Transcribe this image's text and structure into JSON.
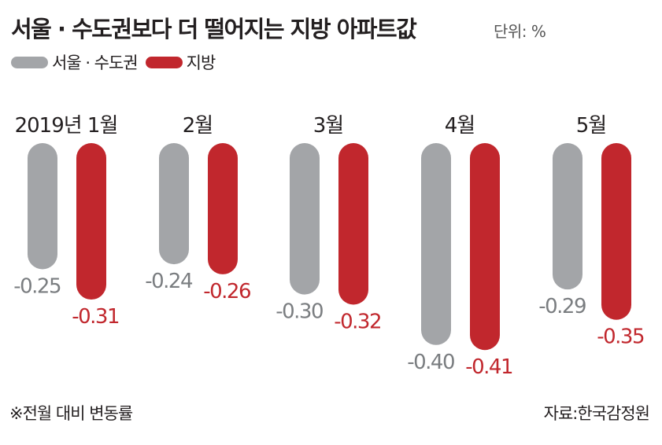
{
  "title": "서울 · 수도권보다 더 떨어지는 지방 아파트값",
  "unit": "단위: %",
  "legend": [
    {
      "label": "서울 · 수도권",
      "color": "#a3a5a8"
    },
    {
      "label": "지방",
      "color": "#c1272d"
    }
  ],
  "chart_data": {
    "type": "bar",
    "title": "서울 · 수도권보다 더 떨어지는 지방 아파트값",
    "categories": [
      "2019년 1월",
      "2월",
      "3월",
      "4월",
      "5월"
    ],
    "series": [
      {
        "name": "서울 · 수도권",
        "values": [
          -0.25,
          -0.24,
          -0.3,
          -0.4,
          -0.29
        ],
        "labels": [
          "-0.25",
          "-0.24",
          "-0.30",
          "-0.40",
          "-0.29"
        ],
        "color": "#a3a5a8",
        "label_color": "#7a7d80"
      },
      {
        "name": "지방",
        "values": [
          -0.31,
          -0.26,
          -0.32,
          -0.41,
          -0.35
        ],
        "labels": [
          "-0.31",
          "-0.26",
          "-0.32",
          "-0.41",
          "-0.35"
        ],
        "color": "#c1272d",
        "label_color": "#c1272d"
      }
    ],
    "unit": "%",
    "ylim": [
      -0.45,
      0
    ],
    "grid": false,
    "legend_position": "top-left"
  },
  "footnote": "※전월 대비 변동률",
  "source": "자료:한국감정원"
}
